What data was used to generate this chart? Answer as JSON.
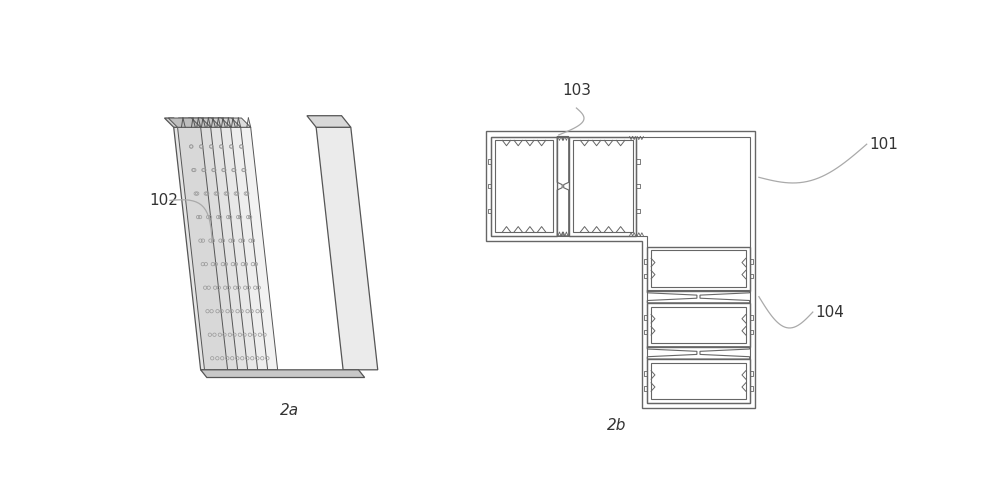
{
  "background_color": "#ffffff",
  "fig_width": 10.0,
  "fig_height": 4.83,
  "label_2a": "2a",
  "label_2b": "2b",
  "label_102": "102",
  "label_101": "101",
  "label_103": "103",
  "label_104": "104",
  "line_color": "#888888",
  "dark_line": "#555555",
  "fill_light": "#f0f0f0",
  "fill_mid": "#e0e0e0",
  "fill_dark": "#cccccc",
  "text_fontsize": 11
}
